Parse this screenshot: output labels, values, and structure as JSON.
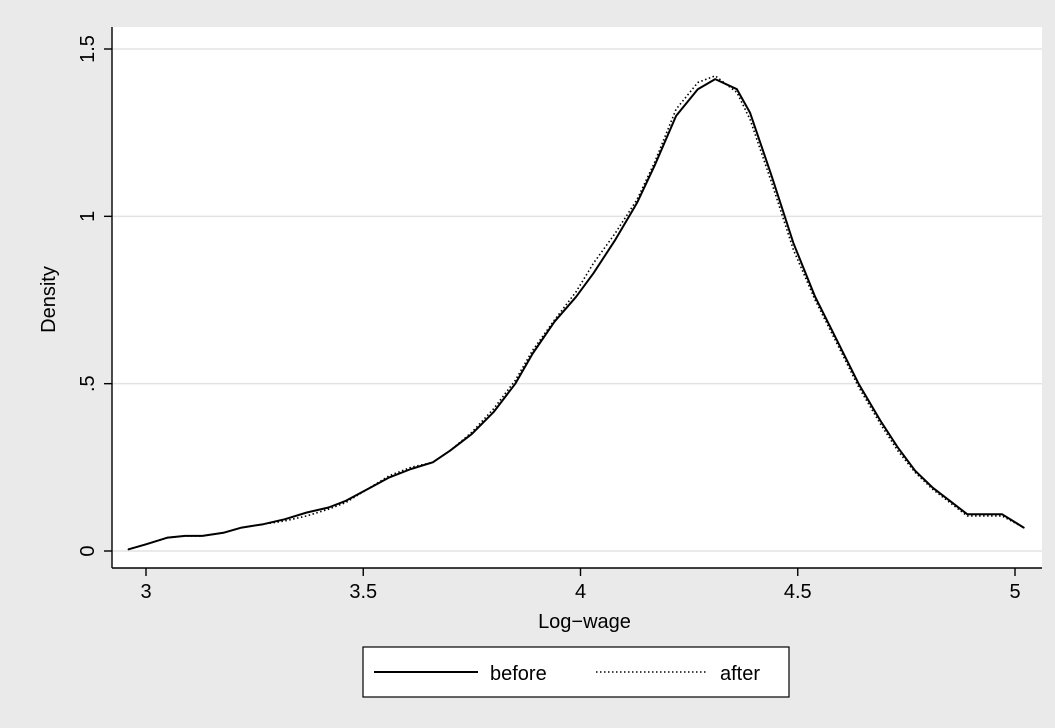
{
  "chart_data": {
    "type": "line",
    "title": "",
    "xlabel": "Log−wage",
    "ylabel": "Density",
    "xlim": [
      2.96,
      5.02
    ],
    "ylim": [
      0,
      1.5
    ],
    "x_ticks": [
      {
        "value": 3,
        "label": "3"
      },
      {
        "value": 3.5,
        "label": "3.5"
      },
      {
        "value": 4,
        "label": "4"
      },
      {
        "value": 4.5,
        "label": "4.5"
      },
      {
        "value": 5,
        "label": "5"
      }
    ],
    "y_ticks": [
      {
        "value": 0,
        "label": "0"
      },
      {
        "value": 0.5,
        "label": ".5"
      },
      {
        "value": 1,
        "label": "1"
      },
      {
        "value": 1.5,
        "label": "1.5"
      }
    ],
    "grid": "horizontal",
    "legend": "bottom-center",
    "series": [
      {
        "name": "before",
        "style": "solid",
        "color": "#000000",
        "points": [
          [
            2.96,
            0.005
          ],
          [
            3.0,
            0.02
          ],
          [
            3.05,
            0.04
          ],
          [
            3.09,
            0.045
          ],
          [
            3.13,
            0.045
          ],
          [
            3.18,
            0.055
          ],
          [
            3.22,
            0.07
          ],
          [
            3.27,
            0.08
          ],
          [
            3.32,
            0.095
          ],
          [
            3.37,
            0.115
          ],
          [
            3.42,
            0.13
          ],
          [
            3.46,
            0.15
          ],
          [
            3.51,
            0.185
          ],
          [
            3.56,
            0.22
          ],
          [
            3.61,
            0.245
          ],
          [
            3.66,
            0.265
          ],
          [
            3.7,
            0.3
          ],
          [
            3.75,
            0.35
          ],
          [
            3.8,
            0.415
          ],
          [
            3.85,
            0.5
          ],
          [
            3.89,
            0.59
          ],
          [
            3.94,
            0.685
          ],
          [
            3.99,
            0.76
          ],
          [
            4.03,
            0.83
          ],
          [
            4.08,
            0.93
          ],
          [
            4.13,
            1.04
          ],
          [
            4.17,
            1.15
          ],
          [
            4.22,
            1.3
          ],
          [
            4.27,
            1.38
          ],
          [
            4.31,
            1.41
          ],
          [
            4.36,
            1.38
          ],
          [
            4.39,
            1.31
          ],
          [
            4.44,
            1.12
          ],
          [
            4.49,
            0.92
          ],
          [
            4.54,
            0.76
          ],
          [
            4.59,
            0.63
          ],
          [
            4.64,
            0.5
          ],
          [
            4.69,
            0.39
          ],
          [
            4.73,
            0.31
          ],
          [
            4.77,
            0.24
          ],
          [
            4.81,
            0.19
          ],
          [
            4.85,
            0.15
          ],
          [
            4.89,
            0.11
          ],
          [
            4.97,
            0.11
          ],
          [
            5.02,
            0.07
          ]
        ]
      },
      {
        "name": "after",
        "style": "dotted",
        "color": "#000000",
        "points": [
          [
            2.96,
            0.005
          ],
          [
            3.0,
            0.02
          ],
          [
            3.05,
            0.04
          ],
          [
            3.09,
            0.045
          ],
          [
            3.13,
            0.045
          ],
          [
            3.18,
            0.055
          ],
          [
            3.22,
            0.07
          ],
          [
            3.27,
            0.08
          ],
          [
            3.32,
            0.09
          ],
          [
            3.37,
            0.105
          ],
          [
            3.42,
            0.125
          ],
          [
            3.46,
            0.145
          ],
          [
            3.51,
            0.185
          ],
          [
            3.56,
            0.225
          ],
          [
            3.61,
            0.25
          ],
          [
            3.66,
            0.265
          ],
          [
            3.7,
            0.3
          ],
          [
            3.75,
            0.355
          ],
          [
            3.8,
            0.425
          ],
          [
            3.85,
            0.51
          ],
          [
            3.89,
            0.6
          ],
          [
            3.94,
            0.69
          ],
          [
            3.99,
            0.775
          ],
          [
            4.03,
            0.86
          ],
          [
            4.08,
            0.95
          ],
          [
            4.13,
            1.05
          ],
          [
            4.17,
            1.16
          ],
          [
            4.22,
            1.32
          ],
          [
            4.27,
            1.4
          ],
          [
            4.31,
            1.42
          ],
          [
            4.36,
            1.37
          ],
          [
            4.39,
            1.29
          ],
          [
            4.44,
            1.1
          ],
          [
            4.49,
            0.9
          ],
          [
            4.54,
            0.75
          ],
          [
            4.59,
            0.62
          ],
          [
            4.64,
            0.49
          ],
          [
            4.69,
            0.38
          ],
          [
            4.73,
            0.3
          ],
          [
            4.77,
            0.235
          ],
          [
            4.81,
            0.185
          ],
          [
            4.85,
            0.145
          ],
          [
            4.89,
            0.105
          ],
          [
            4.97,
            0.105
          ],
          [
            5.02,
            0.07
          ]
        ]
      }
    ]
  }
}
